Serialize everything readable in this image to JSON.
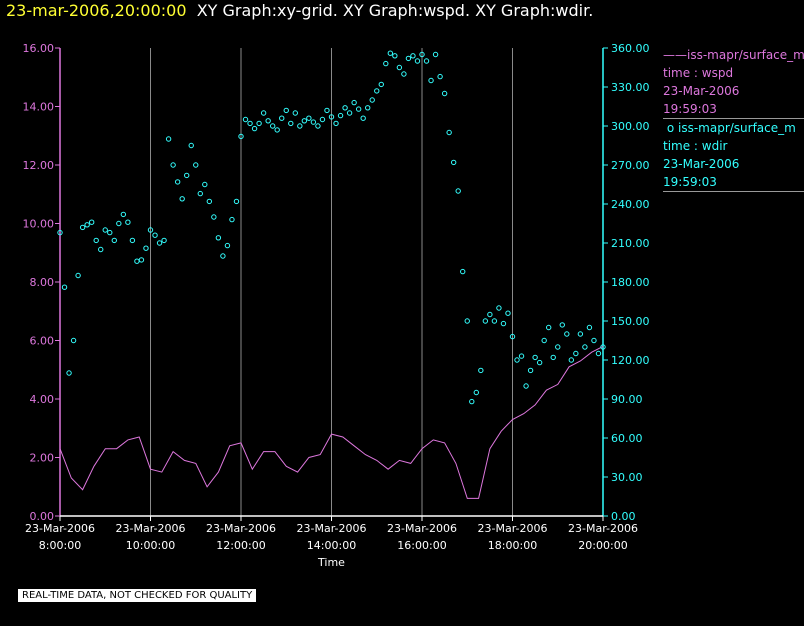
{
  "header": {
    "date_label": "23-mar-2006,20:00:00",
    "graph_labels": "XY Graph:xy-grid.  XY Graph:wspd.  XY Graph:wdir."
  },
  "chart_data": {
    "type": "scatter",
    "title": "23-mar-2006,20:00:00  XY Graph:xy-grid.  XY Graph:wspd.  XY Graph:wdir.",
    "xlabel": "Time",
    "x_ticks": [
      {
        "date": "23-Mar-2006",
        "time": "8:00:00",
        "hour": 8
      },
      {
        "date": "23-Mar-2006",
        "time": "10:00:00",
        "hour": 10
      },
      {
        "date": "23-Mar-2006",
        "time": "12:00:00",
        "hour": 12
      },
      {
        "date": "23-Mar-2006",
        "time": "14:00:00",
        "hour": 14
      },
      {
        "date": "23-Mar-2006",
        "time": "16:00:00",
        "hour": 16
      },
      {
        "date": "23-Mar-2006",
        "time": "18:00:00",
        "hour": 18
      },
      {
        "date": "23-Mar-2006",
        "time": "20:00:00",
        "hour": 20
      }
    ],
    "xlim": [
      8,
      20
    ],
    "y_left": {
      "lim": [
        0,
        16
      ],
      "ticks": [
        "0.00",
        "2.00",
        "4.00",
        "6.00",
        "8.00",
        "10.00",
        "12.00",
        "14.00",
        "16.00"
      ],
      "color": "#dd77dd"
    },
    "y_right": {
      "lim": [
        0,
        360
      ],
      "ticks": [
        "0.00",
        "30.00",
        "60.00",
        "90.00",
        "120.00",
        "150.00",
        "180.00",
        "210.00",
        "240.00",
        "270.00",
        "300.00",
        "330.00",
        "360.00"
      ],
      "color": "#33ffff"
    },
    "grid": "vertical",
    "series": [
      {
        "name": "wspd",
        "style": "line",
        "axis": "left",
        "color": "#dd77dd",
        "x": [
          8.0,
          8.25,
          8.5,
          8.75,
          9.0,
          9.25,
          9.5,
          9.75,
          10.0,
          10.25,
          10.5,
          10.75,
          11.0,
          11.25,
          11.5,
          11.75,
          12.0,
          12.25,
          12.5,
          12.75,
          13.0,
          13.25,
          13.5,
          13.75,
          14.0,
          14.25,
          14.5,
          14.75,
          15.0,
          15.25,
          15.5,
          15.75,
          16.0,
          16.25,
          16.5,
          16.75,
          17.0,
          17.25,
          17.5,
          17.75,
          18.0,
          18.25,
          18.5,
          18.75,
          19.0,
          19.25,
          19.5,
          19.75,
          20.0
        ],
        "y": [
          2.3,
          1.3,
          0.9,
          1.7,
          2.3,
          2.3,
          2.6,
          2.7,
          1.6,
          1.5,
          2.2,
          1.9,
          1.8,
          1.0,
          1.5,
          2.4,
          2.5,
          1.6,
          2.2,
          2.2,
          1.7,
          1.5,
          2.0,
          2.1,
          2.8,
          2.7,
          2.4,
          2.1,
          1.9,
          1.6,
          1.9,
          1.8,
          2.3,
          2.6,
          2.5,
          1.8,
          0.6,
          0.6,
          2.3,
          2.9,
          3.3,
          3.5,
          3.8,
          4.3,
          4.5,
          5.1,
          5.3,
          5.6,
          5.8
        ]
      },
      {
        "name": "wdir",
        "style": "markers",
        "axis": "right",
        "color": "#33ffff",
        "x": [
          8.0,
          8.1,
          8.2,
          8.3,
          8.4,
          8.5,
          8.6,
          8.7,
          8.8,
          8.9,
          9.0,
          9.1,
          9.2,
          9.3,
          9.4,
          9.5,
          9.6,
          9.7,
          9.8,
          9.9,
          10.0,
          10.1,
          10.2,
          10.3,
          10.4,
          10.5,
          10.6,
          10.7,
          10.8,
          10.9,
          11.0,
          11.1,
          11.2,
          11.3,
          11.4,
          11.5,
          11.6,
          11.7,
          11.8,
          11.9,
          12.0,
          12.1,
          12.2,
          12.3,
          12.4,
          12.5,
          12.6,
          12.7,
          12.8,
          12.9,
          13.0,
          13.1,
          13.2,
          13.3,
          13.4,
          13.5,
          13.6,
          13.7,
          13.8,
          13.9,
          14.0,
          14.1,
          14.2,
          14.3,
          14.4,
          14.5,
          14.6,
          14.7,
          14.8,
          14.9,
          15.0,
          15.1,
          15.2,
          15.3,
          15.4,
          15.5,
          15.6,
          15.7,
          15.8,
          15.9,
          16.0,
          16.1,
          16.2,
          16.3,
          16.4,
          16.5,
          16.6,
          16.7,
          16.8,
          16.9,
          17.0,
          17.1,
          17.2,
          17.3,
          17.4,
          17.5,
          17.6,
          17.7,
          17.8,
          17.9,
          18.0,
          18.1,
          18.2,
          18.3,
          18.4,
          18.5,
          18.6,
          18.7,
          18.8,
          18.9,
          19.0,
          19.1,
          19.2,
          19.3,
          19.4,
          19.5,
          19.6,
          19.7,
          19.8,
          19.9,
          20.0
        ],
        "y": [
          218,
          176,
          110,
          135,
          185,
          222,
          224,
          226,
          212,
          205,
          220,
          218,
          212,
          225,
          232,
          226,
          212,
          196,
          197,
          206,
          220,
          216,
          210,
          212,
          290,
          270,
          257,
          244,
          262,
          285,
          270,
          248,
          255,
          242,
          230,
          214,
          200,
          208,
          228,
          242,
          292,
          305,
          302,
          298,
          302,
          310,
          304,
          300,
          297,
          306,
          312,
          302,
          310,
          300,
          304,
          306,
          303,
          300,
          305,
          312,
          307,
          302,
          308,
          314,
          310,
          318,
          313,
          306,
          314,
          320,
          327,
          332,
          348,
          356,
          354,
          345,
          340,
          352,
          354,
          350,
          355,
          350,
          335,
          355,
          338,
          325,
          295,
          272,
          250,
          188,
          150,
          88,
          95,
          112,
          150,
          155,
          150,
          160,
          148,
          156,
          138,
          120,
          123,
          100,
          112,
          122,
          118,
          135,
          145,
          122,
          130,
          147,
          140,
          120,
          125,
          140,
          130,
          145,
          135,
          125,
          130
        ]
      }
    ],
    "legend": [
      {
        "source": "iss-mapr/surface_m",
        "label": "time : wspd",
        "date": "23-Mar-2006",
        "time": "19:59:03",
        "color": "#dd77dd",
        "marker": "line"
      },
      {
        "source": "iss-mapr/surface_m",
        "label": "time : wdir",
        "date": "23-Mar-2006",
        "time": "19:59:03",
        "color": "#33ffff",
        "marker": "circle"
      }
    ]
  },
  "footer": {
    "disclaimer": "REAL-TIME DATA, NOT CHECKED FOR QUALITY"
  }
}
